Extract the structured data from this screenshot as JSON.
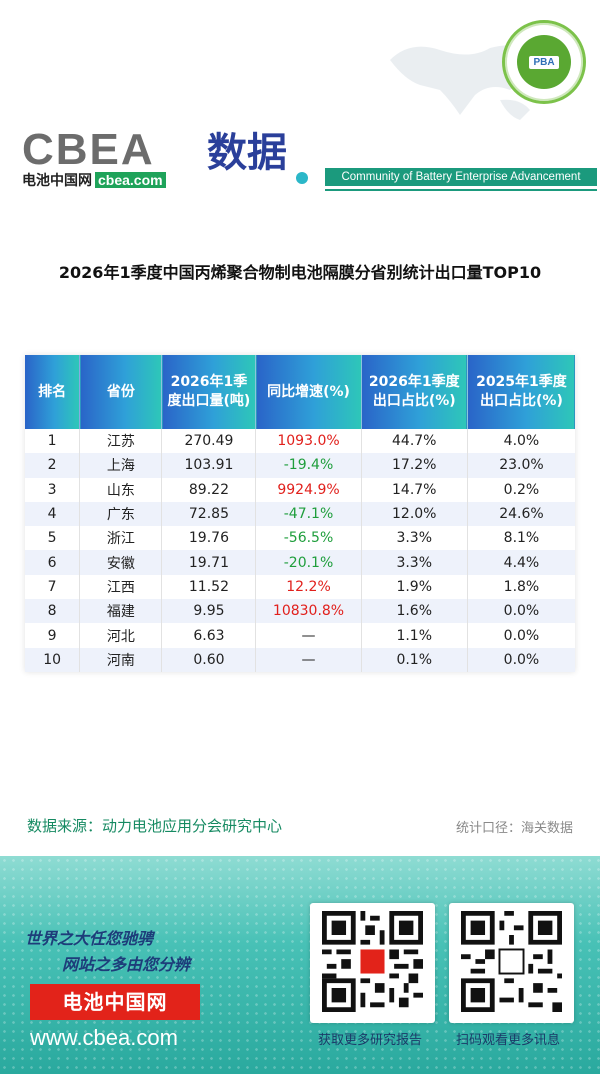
{
  "header": {
    "logo_wordmark": "CBEA",
    "logo_subtitle": "电池中国网",
    "logo_domain": "cbea.com",
    "section_title": "数据",
    "community_tagline": "Community of Battery Enterprise Advancement",
    "badge_text": "PBA"
  },
  "report": {
    "title": "2026年1季度中国丙烯聚合物制电池隔膜分省别统计出口量TOP10"
  },
  "table": {
    "columns": [
      "排名",
      "省份",
      "2026年1季度出口量(吨)",
      "同比增速(%)",
      "2026年1季度出口占比(%)",
      "2025年1季度出口占比(%)"
    ],
    "rows": [
      {
        "rank": "1",
        "province": "江苏",
        "volume": "270.49",
        "growth": "1093.0%",
        "growth_sign": "pos",
        "share_2026": "44.7%",
        "share_2025": "4.0%"
      },
      {
        "rank": "2",
        "province": "上海",
        "volume": "103.91",
        "growth": "-19.4%",
        "growth_sign": "neg",
        "share_2026": "17.2%",
        "share_2025": "23.0%"
      },
      {
        "rank": "3",
        "province": "山东",
        "volume": "89.22",
        "growth": "9924.9%",
        "growth_sign": "pos",
        "share_2026": "14.7%",
        "share_2025": "0.2%"
      },
      {
        "rank": "4",
        "province": "广东",
        "volume": "72.85",
        "growth": "-47.1%",
        "growth_sign": "neg",
        "share_2026": "12.0%",
        "share_2025": "24.6%"
      },
      {
        "rank": "5",
        "province": "浙江",
        "volume": "19.76",
        "growth": "-56.5%",
        "growth_sign": "neg",
        "share_2026": "3.3%",
        "share_2025": "8.1%"
      },
      {
        "rank": "6",
        "province": "安徽",
        "volume": "19.71",
        "growth": "-20.1%",
        "growth_sign": "neg",
        "share_2026": "3.3%",
        "share_2025": "4.4%"
      },
      {
        "rank": "7",
        "province": "江西",
        "volume": "11.52",
        "growth": "12.2%",
        "growth_sign": "pos",
        "share_2026": "1.9%",
        "share_2025": "1.8%"
      },
      {
        "rank": "8",
        "province": "福建",
        "volume": "9.95",
        "growth": "10830.8%",
        "growth_sign": "pos",
        "share_2026": "1.6%",
        "share_2025": "0.0%"
      },
      {
        "rank": "9",
        "province": "河北",
        "volume": "6.63",
        "growth": "—",
        "growth_sign": "none",
        "share_2026": "1.1%",
        "share_2025": "0.0%"
      },
      {
        "rank": "10",
        "province": "河南",
        "volume": "0.60",
        "growth": "—",
        "growth_sign": "none",
        "share_2026": "0.1%",
        "share_2025": "0.0%"
      }
    ]
  },
  "notes": {
    "source": "数据来源：动力电池应用分会研究中心",
    "scope": "统计口径：海关数据"
  },
  "footer": {
    "slogan_line1": "世界之大任您驰骋",
    "slogan_line2": "网站之多由您分辨",
    "brand_name": "电池中国网",
    "website": "www.cbea.com",
    "qr1_label": "获取更多研究报告",
    "qr2_label": "扫码观看更多讯息"
  },
  "colors": {
    "positive_growth": "#e1201c",
    "negative_growth": "#1f9e3c",
    "header_gradient_start": "#2a64c8",
    "header_gradient_end": "#2ec7b8",
    "brand_red": "#e2231a",
    "accent_teal": "#1b9a7d"
  }
}
